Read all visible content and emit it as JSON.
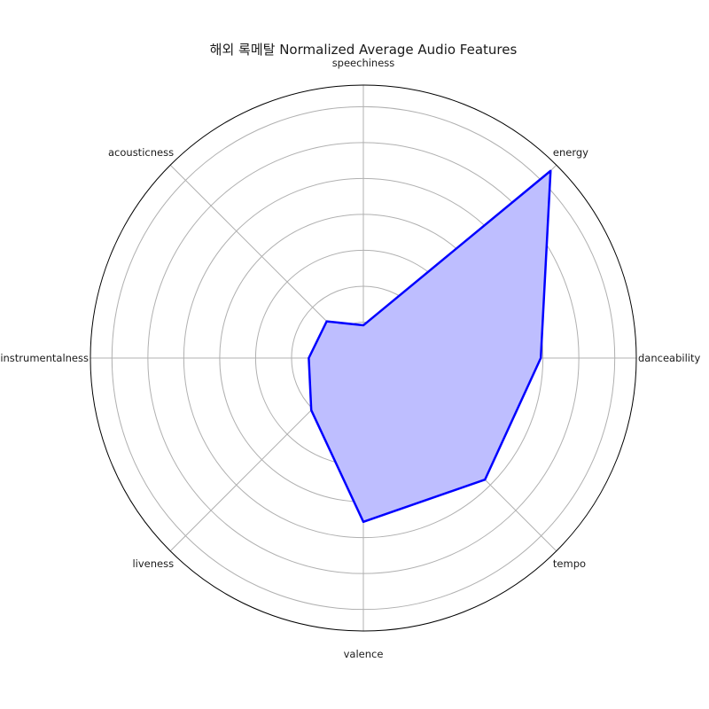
{
  "chart_data": {
    "type": "radar",
    "title": "해외 록메탈 Normalized Average Audio Features",
    "axes": [
      "danceability",
      "energy",
      "speechiness",
      "acousticness",
      "instrumentalness",
      "liveness",
      "valence",
      "tempo"
    ],
    "series": [
      {
        "values": [
          0.65,
          0.97,
          0.12,
          0.19,
          0.2,
          0.27,
          0.6,
          0.63
        ]
      }
    ],
    "rlim": [
      0,
      1
    ],
    "grid": true,
    "grid_rings": 7,
    "line_color": "#0000ff",
    "fill_color": "#bebeff",
    "grid_color": "#b0b0b0"
  }
}
